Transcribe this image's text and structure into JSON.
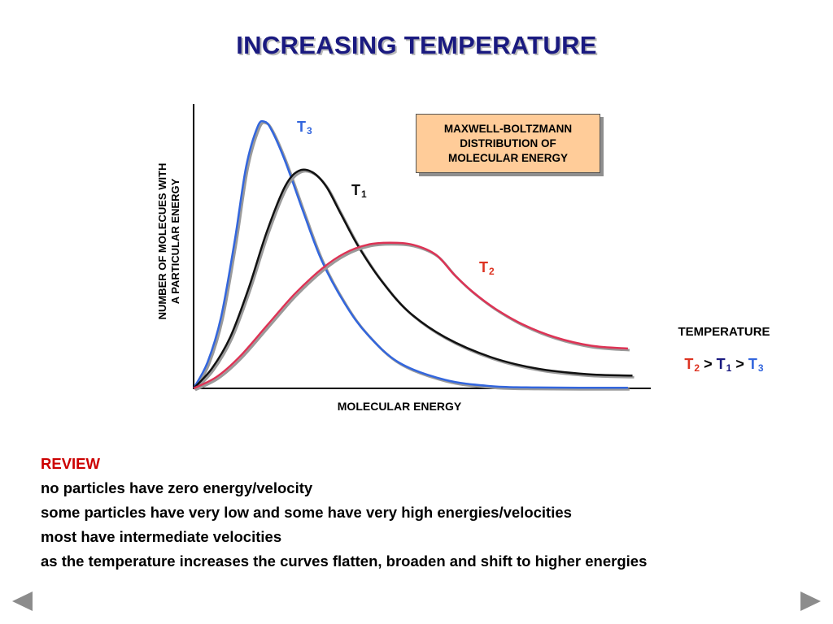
{
  "slide": {
    "title": "INCREASING TEMPERATURE"
  },
  "chart_data": {
    "type": "line",
    "title": "",
    "xlabel": "MOLECULAR ENERGY",
    "ylabel_lines": [
      "NUMBER OF MOLECUES WITH",
      "A PARTICULAR ENERGY"
    ],
    "xlim": [
      0,
      100
    ],
    "ylim": [
      0,
      100
    ],
    "grid": false,
    "annotation_box": [
      "MAXWELL-BOLTZMANN",
      "DISTRIBUTION OF",
      "MOLECULAR ENERGY"
    ],
    "series": [
      {
        "name": "T3",
        "label_main": "T",
        "label_sub": "3",
        "color": "#3366dd",
        "points": [
          [
            0,
            0
          ],
          [
            3,
            9
          ],
          [
            6,
            25
          ],
          [
            9,
            52
          ],
          [
            11.5,
            78
          ],
          [
            14,
            92
          ],
          [
            15.5,
            93.8
          ],
          [
            17,
            91
          ],
          [
            20,
            80
          ],
          [
            24,
            62
          ],
          [
            28,
            45
          ],
          [
            33,
            30
          ],
          [
            38,
            19
          ],
          [
            45,
            9
          ],
          [
            55,
            3
          ],
          [
            65,
            0.8
          ],
          [
            75,
            0.3
          ],
          [
            95,
            0.2
          ]
        ]
      },
      {
        "name": "T1",
        "label_main": "T",
        "label_sub": "1",
        "color": "#111111",
        "points": [
          [
            0,
            0
          ],
          [
            4,
            7
          ],
          [
            8,
            18
          ],
          [
            12,
            35
          ],
          [
            16,
            55
          ],
          [
            20,
            71
          ],
          [
            23,
            76.5
          ],
          [
            26,
            76
          ],
          [
            29,
            71
          ],
          [
            32,
            62
          ],
          [
            36,
            50
          ],
          [
            41,
            38
          ],
          [
            47,
            27
          ],
          [
            55,
            18
          ],
          [
            65,
            11
          ],
          [
            75,
            7
          ],
          [
            86,
            5
          ],
          [
            96,
            4.5
          ]
        ]
      },
      {
        "name": "T2",
        "label_main": "T",
        "label_sub": "2",
        "color": "#dd3355",
        "points": [
          [
            0,
            0
          ],
          [
            5,
            4
          ],
          [
            10,
            11
          ],
          [
            16,
            22
          ],
          [
            22,
            33
          ],
          [
            28,
            42
          ],
          [
            33,
            47.5
          ],
          [
            38,
            50.5
          ],
          [
            43,
            51.2
          ],
          [
            48,
            50.5
          ],
          [
            53,
            47
          ],
          [
            57,
            40
          ],
          [
            61,
            34
          ],
          [
            66,
            28
          ],
          [
            72,
            22.5
          ],
          [
            79,
            18
          ],
          [
            87,
            15
          ],
          [
            95,
            14
          ]
        ]
      }
    ]
  },
  "legend_panel": {
    "heading": "TEMPERATURE",
    "order": [
      {
        "main": "T",
        "sub": "2",
        "color": "#dd3322"
      },
      {
        "sep": ">"
      },
      {
        "main": "T",
        "sub": "1",
        "color": "#1a1a80"
      },
      {
        "sep": ">"
      },
      {
        "main": "T",
        "sub": "3",
        "color": "#3366dd"
      }
    ]
  },
  "review": {
    "heading": "REVIEW",
    "lines": [
      "no particles have zero energy/velocity",
      "some particles have very low and some have very high energies/velocities",
      "most have intermediate velocities",
      "as the temperature increases the curves flatten, broaden and shift to higher energies"
    ]
  },
  "nav": {
    "prev_icon": "triangle-left-icon",
    "next_icon": "triangle-right-icon",
    "color": "#8c8c8c"
  }
}
